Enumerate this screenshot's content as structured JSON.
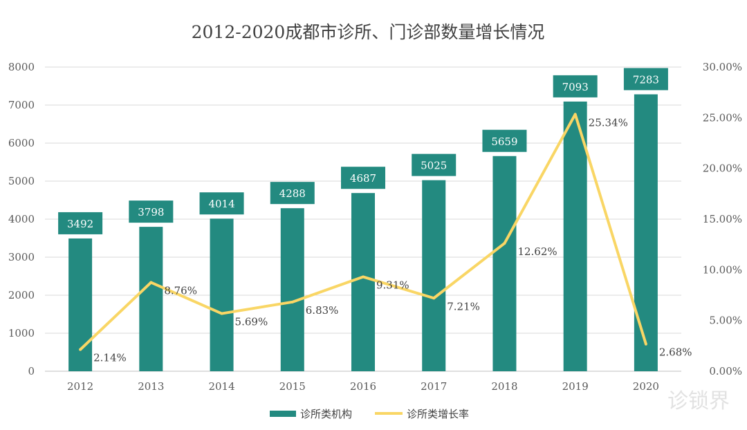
{
  "chart_data": {
    "type": "bar+line",
    "title": "2012-2020成都市诊所、门诊部数量增长情况",
    "categories": [
      "2012",
      "2013",
      "2014",
      "2015",
      "2016",
      "2017",
      "2018",
      "2019",
      "2020"
    ],
    "series": [
      {
        "name": "诊所类机构",
        "type": "bar",
        "axis": "left",
        "values": [
          3492,
          3798,
          4014,
          4288,
          4687,
          5025,
          5659,
          7093,
          7283
        ],
        "color": "#238a80"
      },
      {
        "name": "诊所类增长率",
        "type": "line",
        "axis": "right",
        "values": [
          2.14,
          8.76,
          5.69,
          6.83,
          9.31,
          7.21,
          12.62,
          25.34,
          2.68
        ],
        "labels": [
          "2.14%",
          "8.76%",
          "5.69%",
          "6.83%",
          "9.31%",
          "7.21%",
          "12.62%",
          "25.34%",
          "2.68%"
        ],
        "color": "#f9d665"
      }
    ],
    "ylim_left": [
      0,
      8000
    ],
    "yticks_left": [
      "0",
      "1000",
      "2000",
      "3000",
      "4000",
      "5000",
      "6000",
      "7000",
      "8000"
    ],
    "ylim_right": [
      0,
      30
    ],
    "yticks_right": [
      "0.00%",
      "5.00%",
      "10.00%",
      "15.00%",
      "20.00%",
      "25.00%",
      "30.00%"
    ],
    "grid": true,
    "legend_position": "bottom"
  },
  "watermark": "诊锁界"
}
